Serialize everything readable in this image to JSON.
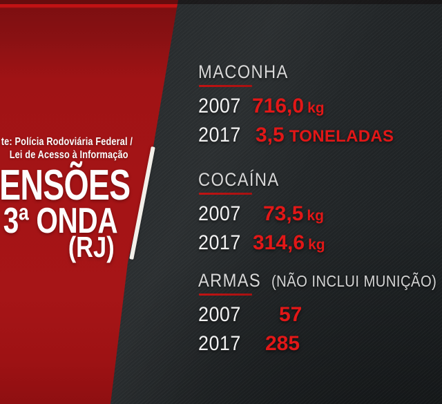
{
  "panel_left": {
    "source_line1": "te: Polícia Rodoviária Federal /",
    "source_line2": "Lei de Acesso à Informação",
    "headline_line1": "ENSÕES",
    "headline_line2": "3ª ONDA",
    "headline_line3": "(RJ)"
  },
  "stats": {
    "sections": [
      {
        "title": "MACONHA",
        "note": "",
        "rows": [
          {
            "year": "2007",
            "value": "716,0",
            "unit": "kg"
          },
          {
            "year": "2017",
            "value": "3,5",
            "unit": "TONELADAS"
          }
        ]
      },
      {
        "title": "COCAÍNA",
        "note": "",
        "rows": [
          {
            "year": "2007",
            "value": "73,5",
            "unit": "kg"
          },
          {
            "year": "2017",
            "value": "314,6",
            "unit": "kg"
          }
        ]
      },
      {
        "title": "ARMAS",
        "note": "(NÃO INCLUI MUNIÇÃO)",
        "rows": [
          {
            "year": "2007",
            "value": "57",
            "unit": ""
          },
          {
            "year": "2017",
            "value": "285",
            "unit": ""
          }
        ]
      }
    ]
  },
  "colors": {
    "accent_red": "#e21717",
    "panel_red": "#a21315",
    "bright_red_band": "#c01113",
    "underline_red": "#b31212",
    "background_dark": "#26292b",
    "text_white": "#f2f2f2",
    "header_gray": "#d8d8d8",
    "separator_white": "#f3f0ea"
  },
  "chart_data": {
    "type": "table",
    "title": "ENSÕES 3ª ONDA (RJ)",
    "source": "te: Polícia Rodoviária Federal / Lei de Acesso à Informação",
    "categories": [
      "MACONHA",
      "COCAÍNA",
      "ARMAS (NÃO INCLUI MUNIÇÃO)"
    ],
    "series": [
      {
        "name": "2007",
        "values": [
          "716,0 kg",
          "73,5 kg",
          "57"
        ]
      },
      {
        "name": "2017",
        "values": [
          "3,5 TONELADAS",
          "314,6 kg",
          "285"
        ]
      }
    ]
  }
}
